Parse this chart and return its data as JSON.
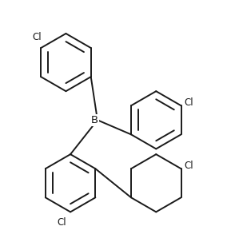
{
  "bg_color": "#ffffff",
  "line_color": "#1a1a1a",
  "line_width": 1.4,
  "text_color": "#1a1a1a",
  "font_size": 8.5,
  "figsize": [
    2.89,
    3.13
  ],
  "dpi": 100,
  "xlim": [
    -0.95,
    1.45
  ],
  "ylim": [
    -1.25,
    1.5
  ]
}
